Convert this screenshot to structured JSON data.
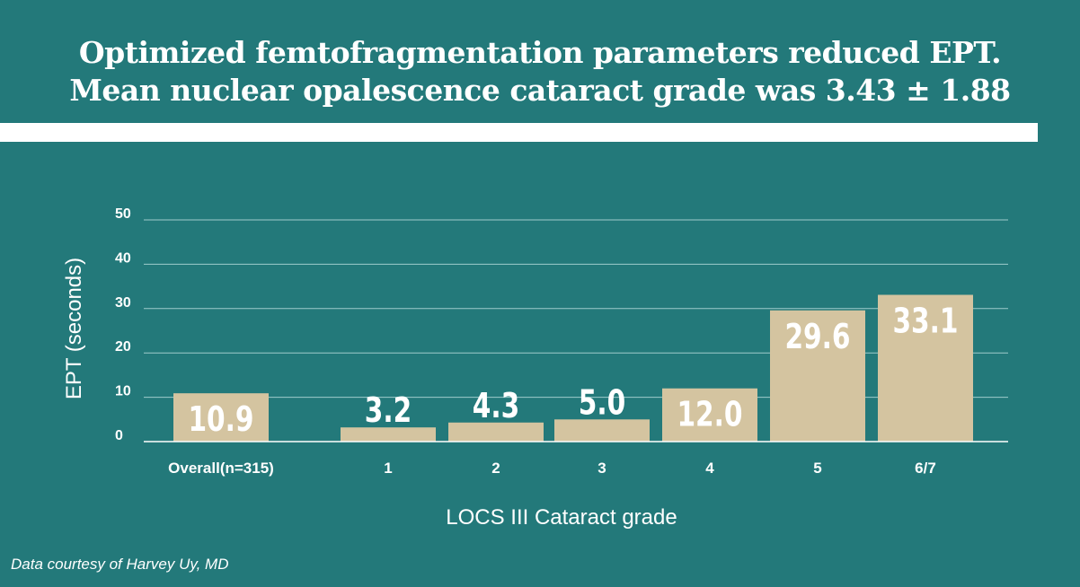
{
  "header": {
    "title_line1": "Optimized femtofragmentation parameters reduced EPT.",
    "title_line2": "Mean nuclear opalescence cataract grade was 3.43 ± 1.88"
  },
  "footer": {
    "credit": "Data courtesy of Harvey Uy, MD"
  },
  "colors": {
    "background": "#23797a",
    "bar": "#d4c4a0",
    "text": "#ffffff",
    "gridline": "#9fcccc"
  },
  "chart_data": {
    "type": "bar",
    "title": "",
    "xlabel": "LOCS III Cataract grade",
    "ylabel": "EPT (seconds)",
    "ylim": [
      0,
      50
    ],
    "yticks": [
      0,
      10,
      20,
      30,
      40,
      50
    ],
    "categories": [
      "Overall(n=315)",
      "1",
      "2",
      "3",
      "4",
      "5",
      "6/7"
    ],
    "values": [
      10.9,
      3.2,
      4.3,
      5.0,
      12.0,
      29.6,
      33.1
    ],
    "data_labels": [
      "10.9",
      "3.2",
      "4.3",
      "5.0",
      "12.0",
      "29.6",
      "33.1"
    ],
    "grid": true,
    "legend": "none"
  }
}
